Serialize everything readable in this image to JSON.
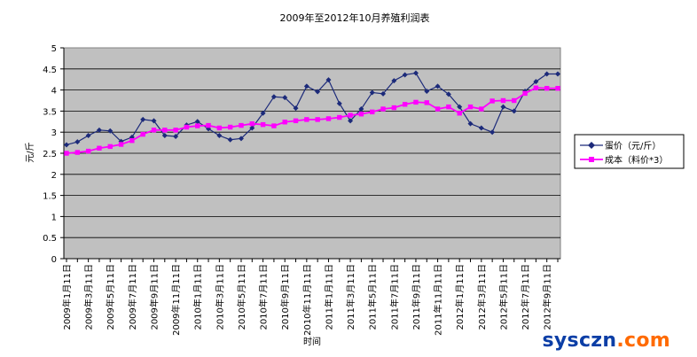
{
  "chart_data": {
    "type": "line",
    "title": "2009年至2012年10月养殖利润表",
    "xlabel": "时间",
    "ylabel": "元/斤",
    "ylim": [
      0,
      5
    ],
    "yticks": [
      "0",
      "0.5",
      "1",
      "1.5",
      "2",
      "2.5",
      "3",
      "3.5",
      "4",
      "4.5",
      "5"
    ],
    "grid": true,
    "legend_position": "right",
    "background": "#c0c0c0",
    "categories": [
      "2009年1月11日",
      "2009年2月11日",
      "2009年3月11日",
      "2009年4月11日",
      "2009年5月11日",
      "2009年6月11日",
      "2009年7月11日",
      "2009年8月11日",
      "2009年9月11日",
      "2009年10月11日",
      "2009年11月11日",
      "2009年12月11日",
      "2010年1月11日",
      "2010年2月11日",
      "2010年3月11日",
      "2010年4月11日",
      "2010年5月11日",
      "2010年6月11日",
      "2010年7月11日",
      "2010年8月11日",
      "2010年9月11日",
      "2010年10月11日",
      "2010年11月11日",
      "2010年12月11日",
      "2011年1月11日",
      "2011年2月11日",
      "2011年3月11日",
      "2011年4月11日",
      "2011年5月11日",
      "2011年6月11日",
      "2011年7月11日",
      "2011年8月11日",
      "2011年9月11日",
      "2011年10月11日",
      "2011年11月11日",
      "2011年12月11日",
      "2012年1月11日",
      "2012年2月11日",
      "2012年3月11日",
      "2012年4月11日",
      "2012年5月11日",
      "2012年6月11日",
      "2012年7月11日",
      "2012年8月11日",
      "2012年9月11日",
      "2012年10月11日"
    ],
    "x_tick_labels": [
      "2009年1月11日",
      "2009年3月11日",
      "2009年5月11日",
      "2009年7月11日",
      "2009年9月11日",
      "2009年11月11日",
      "2010年1月11日",
      "2010年3月11日",
      "2010年5月11日",
      "2010年7月11日",
      "2010年9月11日",
      "2010年11月11日",
      "2011年1月11日",
      "2011年3月11日",
      "2011年5月11日",
      "2011年7月11日",
      "2011年9月11日",
      "2011年11月11日",
      "2012年1月11日",
      "2012年3月11日",
      "2012年5月11日",
      "2012年7月11日",
      "2012年9月11日"
    ],
    "series": [
      {
        "name": "蛋价（元/斤）",
        "color": "#1c2a7a",
        "marker": "diamond",
        "values": [
          2.7,
          2.77,
          2.92,
          3.05,
          3.03,
          2.78,
          2.88,
          3.3,
          3.27,
          2.92,
          2.9,
          3.17,
          3.25,
          3.08,
          2.92,
          2.82,
          2.85,
          3.1,
          3.45,
          3.84,
          3.82,
          3.57,
          4.09,
          3.96,
          4.24,
          3.68,
          3.27,
          3.55,
          3.94,
          3.91,
          4.22,
          4.36,
          4.4,
          3.97,
          4.09,
          3.9,
          3.6,
          3.2,
          3.1,
          3.0,
          3.6,
          3.5,
          3.97,
          4.2,
          4.38,
          4.38
        ]
      },
      {
        "name": "成本（料价*3）",
        "color": "#ff00ff",
        "marker": "square",
        "values": [
          2.5,
          2.52,
          2.55,
          2.62,
          2.66,
          2.71,
          2.8,
          2.95,
          3.05,
          3.05,
          3.05,
          3.12,
          3.15,
          3.16,
          3.1,
          3.12,
          3.16,
          3.2,
          3.18,
          3.15,
          3.24,
          3.27,
          3.3,
          3.3,
          3.32,
          3.35,
          3.4,
          3.43,
          3.48,
          3.55,
          3.58,
          3.66,
          3.71,
          3.7,
          3.55,
          3.6,
          3.45,
          3.6,
          3.55,
          3.74,
          3.75,
          3.75,
          3.92,
          4.05,
          4.04,
          4.04
        ]
      }
    ]
  },
  "watermark": {
    "part1": "sysczn",
    "part2": ".com",
    "color1": "#0b3ea6",
    "color2": "#ff6a00"
  }
}
